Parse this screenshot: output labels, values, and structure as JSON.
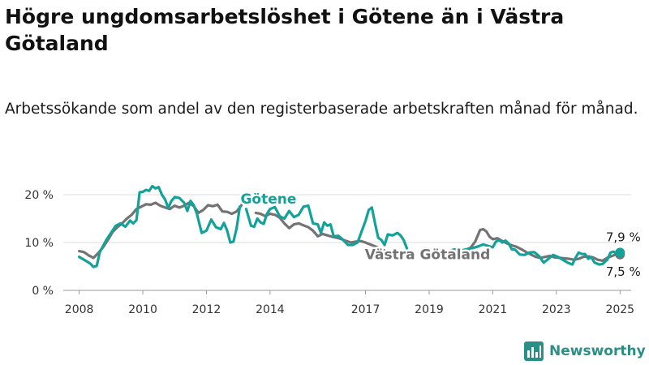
{
  "title": "Högre ungdomsarbetslöshet i Götene än i Västra Götaland",
  "subtitle": "Arbetssökande som andel av den registerbaserade arbetskraften månad för månad.",
  "brand": {
    "name": "Newsworthy",
    "icon": "bar-chart-logo-icon",
    "color": "#2a8f87"
  },
  "chart_data": {
    "type": "line",
    "title": "Högre ungdomsarbetslöshet i Götene än i Västra Götaland",
    "subtitle": "Arbetssökande som andel av den registerbaserade arbetskraften månad för månad.",
    "xlabel": "",
    "ylabel": "",
    "x_unit": "year",
    "xlim": [
      2007.5,
      2025.35
    ],
    "ylim": [
      0,
      20
    ],
    "grid": true,
    "x_ticks": [
      2008,
      2010,
      2012,
      2014,
      2017,
      2019,
      2021,
      2023,
      2025
    ],
    "x_tick_labels": [
      "2008",
      "2010",
      "2012",
      "2014",
      "2017",
      "2019",
      "2021",
      "2023",
      "2025"
    ],
    "y_ticks": [
      0,
      10,
      20
    ],
    "y_tick_labels": [
      "0 %",
      "10 %",
      "20 %"
    ],
    "series": [
      {
        "name": "Götene",
        "color": "#13a29a",
        "end_label": "7,9 %",
        "segments": [
          [
            [
              2008.0,
              7.0
            ],
            [
              2008.2,
              6.2
            ],
            [
              2008.35,
              5.6
            ],
            [
              2008.45,
              4.9
            ],
            [
              2008.55,
              5.1
            ],
            [
              2008.65,
              8.0
            ],
            [
              2008.85,
              10.5
            ],
            [
              2009.0,
              12.0
            ],
            [
              2009.15,
              13.5
            ],
            [
              2009.3,
              14.0
            ],
            [
              2009.45,
              13.3
            ],
            [
              2009.6,
              14.6
            ],
            [
              2009.7,
              14.0
            ],
            [
              2009.8,
              14.7
            ],
            [
              2009.9,
              20.5
            ],
            [
              2010.0,
              20.6
            ],
            [
              2010.1,
              21.0
            ],
            [
              2010.2,
              20.8
            ],
            [
              2010.3,
              21.8
            ],
            [
              2010.4,
              21.3
            ],
            [
              2010.5,
              21.6
            ],
            [
              2010.6,
              20.0
            ],
            [
              2010.7,
              19.0
            ],
            [
              2010.8,
              17.2
            ],
            [
              2010.9,
              18.7
            ],
            [
              2011.0,
              19.5
            ],
            [
              2011.15,
              19.3
            ],
            [
              2011.3,
              18.3
            ],
            [
              2011.4,
              16.6
            ],
            [
              2011.5,
              18.7
            ],
            [
              2011.6,
              17.8
            ],
            [
              2011.7,
              16.0
            ],
            [
              2011.85,
              12.0
            ],
            [
              2012.0,
              12.5
            ],
            [
              2012.15,
              14.8
            ],
            [
              2012.3,
              13.2
            ],
            [
              2012.45,
              12.8
            ],
            [
              2012.55,
              14.1
            ],
            [
              2012.65,
              12.5
            ],
            [
              2012.75,
              10.0
            ],
            [
              2012.85,
              10.2
            ],
            [
              2012.95,
              13.0
            ],
            [
              2013.05,
              17.5
            ]
          ],
          [
            [
              2013.25,
              17.0
            ],
            [
              2013.4,
              13.5
            ],
            [
              2013.5,
              13.3
            ],
            [
              2013.6,
              15.0
            ],
            [
              2013.7,
              14.2
            ],
            [
              2013.8,
              13.9
            ],
            [
              2013.9,
              16.0
            ],
            [
              2014.0,
              17.0
            ],
            [
              2014.15,
              17.4
            ],
            [
              2014.3,
              15.5
            ],
            [
              2014.45,
              15.0
            ],
            [
              2014.6,
              16.6
            ],
            [
              2014.75,
              15.3
            ],
            [
              2014.9,
              15.8
            ],
            [
              2015.05,
              17.5
            ],
            [
              2015.2,
              17.7
            ],
            [
              2015.35,
              14.0
            ],
            [
              2015.5,
              13.8
            ],
            [
              2015.6,
              12.0
            ],
            [
              2015.7,
              14.2
            ],
            [
              2015.8,
              13.5
            ],
            [
              2015.9,
              13.8
            ],
            [
              2016.0,
              11.3
            ],
            [
              2016.15,
              11.4
            ],
            [
              2016.3,
              10.5
            ],
            [
              2016.45,
              9.5
            ],
            [
              2016.6,
              9.5
            ],
            [
              2016.75,
              10.0
            ],
            [
              2016.9,
              12.7
            ],
            [
              2017.0,
              14.5
            ],
            [
              2017.1,
              16.8
            ],
            [
              2017.2,
              17.3
            ],
            [
              2017.3,
              14.0
            ],
            [
              2017.4,
              11.0
            ],
            [
              2017.5,
              10.5
            ],
            [
              2017.6,
              9.5
            ],
            [
              2017.7,
              11.7
            ],
            [
              2017.85,
              11.5
            ],
            [
              2018.0,
              12.0
            ],
            [
              2018.1,
              11.5
            ],
            [
              2018.2,
              10.5
            ],
            [
              2018.3,
              8.8
            ]
          ],
          [
            [
              2018.85,
              8.3
            ],
            [
              2019.0,
              8.6
            ],
            [
              2019.15,
              8.1
            ],
            [
              2019.3,
              8.6
            ]
          ],
          [
            [
              2019.65,
              8.2
            ],
            [
              2019.8,
              8.6
            ],
            [
              2019.95,
              8.1
            ],
            [
              2020.1,
              8.5
            ],
            [
              2020.25,
              8.6
            ],
            [
              2020.4,
              8.9
            ],
            [
              2020.55,
              9.2
            ],
            [
              2020.7,
              9.6
            ],
            [
              2020.85,
              9.3
            ],
            [
              2021.0,
              9.0
            ],
            [
              2021.1,
              10.2
            ],
            [
              2021.2,
              10.5
            ],
            [
              2021.3,
              10.0
            ],
            [
              2021.4,
              10.4
            ],
            [
              2021.5,
              9.8
            ],
            [
              2021.6,
              8.6
            ],
            [
              2021.7,
              8.5
            ],
            [
              2021.85,
              7.5
            ],
            [
              2022.0,
              7.4
            ],
            [
              2022.15,
              7.9
            ],
            [
              2022.3,
              8.0
            ],
            [
              2022.45,
              7.2
            ],
            [
              2022.6,
              5.8
            ],
            [
              2022.75,
              6.6
            ],
            [
              2022.9,
              7.4
            ],
            [
              2023.05,
              7.0
            ],
            [
              2023.2,
              6.4
            ],
            [
              2023.35,
              5.8
            ],
            [
              2023.5,
              5.4
            ],
            [
              2023.6,
              6.8
            ],
            [
              2023.7,
              7.9
            ],
            [
              2023.8,
              7.6
            ],
            [
              2023.9,
              7.6
            ],
            [
              2024.0,
              6.6
            ],
            [
              2024.1,
              6.9
            ],
            [
              2024.2,
              5.8
            ],
            [
              2024.35,
              5.4
            ],
            [
              2024.45,
              5.5
            ],
            [
              2024.6,
              6.4
            ],
            [
              2024.7,
              7.9
            ],
            [
              2024.8,
              8.1
            ],
            [
              2024.9,
              7.6
            ],
            [
              2025.0,
              7.9
            ]
          ]
        ]
      },
      {
        "name": "Västra Götaland",
        "color": "#737373",
        "end_label": "7,5 %",
        "segments": [
          [
            [
              2008.0,
              8.2
            ],
            [
              2008.15,
              8.0
            ],
            [
              2008.3,
              7.3
            ],
            [
              2008.45,
              6.8
            ],
            [
              2008.6,
              7.8
            ],
            [
              2008.75,
              9.0
            ],
            [
              2008.9,
              10.5
            ],
            [
              2009.05,
              12.2
            ],
            [
              2009.2,
              13.2
            ],
            [
              2009.35,
              14.0
            ],
            [
              2009.5,
              15.0
            ],
            [
              2009.65,
              15.8
            ],
            [
              2009.8,
              17.0
            ],
            [
              2009.95,
              17.5
            ],
            [
              2010.1,
              18.0
            ],
            [
              2010.25,
              17.9
            ],
            [
              2010.4,
              18.3
            ],
            [
              2010.55,
              17.7
            ],
            [
              2010.7,
              17.3
            ],
            [
              2010.85,
              17.0
            ],
            [
              2011.0,
              17.7
            ],
            [
              2011.15,
              17.3
            ],
            [
              2011.3,
              17.7
            ],
            [
              2011.45,
              18.3
            ],
            [
              2011.6,
              17.6
            ],
            [
              2011.75,
              16.2
            ],
            [
              2011.9,
              16.8
            ],
            [
              2012.05,
              17.8
            ],
            [
              2012.2,
              17.6
            ],
            [
              2012.35,
              17.9
            ],
            [
              2012.5,
              16.5
            ],
            [
              2012.65,
              16.4
            ],
            [
              2012.8,
              16.0
            ],
            [
              2012.95,
              16.5
            ],
            [
              2013.1,
              17.8
            ]
          ],
          [
            [
              2013.55,
              16.2
            ],
            [
              2013.7,
              16.0
            ],
            [
              2013.85,
              15.5
            ],
            [
              2014.0,
              16.0
            ],
            [
              2014.15,
              15.8
            ],
            [
              2014.3,
              15.2
            ],
            [
              2014.45,
              14.0
            ],
            [
              2014.6,
              13.0
            ],
            [
              2014.75,
              13.8
            ],
            [
              2014.9,
              14.0
            ],
            [
              2015.05,
              13.6
            ],
            [
              2015.2,
              13.2
            ],
            [
              2015.35,
              12.5
            ],
            [
              2015.5,
              11.3
            ],
            [
              2015.65,
              11.8
            ],
            [
              2015.8,
              11.5
            ],
            [
              2015.95,
              11.2
            ],
            [
              2016.1,
              11.0
            ],
            [
              2016.25,
              10.7
            ],
            [
              2016.4,
              10.3
            ],
            [
              2016.55,
              10.0
            ],
            [
              2016.7,
              10.2
            ],
            [
              2016.85,
              10.3
            ],
            [
              2017.0,
              10.0
            ],
            [
              2017.15,
              9.6
            ],
            [
              2017.3,
              9.2
            ],
            [
              2017.45,
              8.8
            ],
            [
              2017.6,
              8.3
            ]
          ],
          [
            [
              2020.15,
              8.5
            ],
            [
              2020.3,
              8.9
            ],
            [
              2020.45,
              10.2
            ],
            [
              2020.6,
              12.6
            ],
            [
              2020.7,
              12.8
            ],
            [
              2020.8,
              12.3
            ],
            [
              2020.9,
              11.2
            ],
            [
              2021.0,
              10.7
            ],
            [
              2021.15,
              10.9
            ],
            [
              2021.3,
              10.3
            ],
            [
              2021.45,
              9.8
            ],
            [
              2021.6,
              9.4
            ],
            [
              2021.75,
              9.1
            ],
            [
              2021.9,
              8.6
            ],
            [
              2022.05,
              8.0
            ],
            [
              2022.2,
              7.5
            ],
            [
              2022.35,
              7.0
            ],
            [
              2022.5,
              6.8
            ],
            [
              2022.65,
              7.0
            ],
            [
              2022.8,
              7.2
            ],
            [
              2022.95,
              6.9
            ],
            [
              2023.1,
              6.8
            ],
            [
              2023.25,
              6.7
            ],
            [
              2023.4,
              6.6
            ],
            [
              2023.55,
              6.4
            ],
            [
              2023.7,
              6.6
            ],
            [
              2023.85,
              7.0
            ],
            [
              2024.0,
              7.1
            ],
            [
              2024.15,
              6.9
            ],
            [
              2024.3,
              6.4
            ],
            [
              2024.45,
              6.2
            ],
            [
              2024.6,
              6.8
            ],
            [
              2024.75,
              7.2
            ],
            [
              2024.9,
              7.6
            ],
            [
              2025.0,
              7.5
            ]
          ]
        ]
      }
    ],
    "annotations": [
      {
        "text": "Götene",
        "series": "Götene",
        "x": 2013.95,
        "y": 18.1,
        "color": "#13a29a"
      },
      {
        "text": "Västra Götaland",
        "series": "Västra Götaland",
        "x": 2018.95,
        "y": 6.5,
        "color": "#737373"
      }
    ]
  }
}
